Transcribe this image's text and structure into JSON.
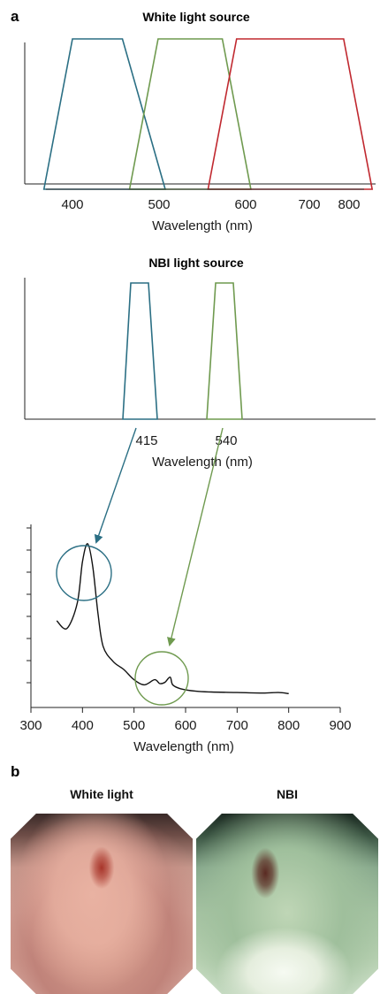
{
  "panel_a": {
    "letter": "a",
    "white_title": "White light source",
    "white_ticks": [
      "400",
      "500",
      "600",
      "700",
      "800"
    ],
    "white_xlabel": "Wavelength (nm)",
    "nbi_title": "NBI light source",
    "nbi_ticks": [
      "415",
      "540"
    ],
    "nbi_xlabel": "Wavelength (nm)",
    "spec_ticks": [
      "300",
      "400",
      "500",
      "600",
      "700",
      "800",
      "900"
    ],
    "spec_xlabel": "Wavelength (nm)"
  },
  "panel_b": {
    "letter": "b",
    "left_title": "White light",
    "right_title": "NBI"
  },
  "colors": {
    "blue": "#2b6f84",
    "green": "#6f9a4f",
    "red": "#c0282f",
    "black": "#111111"
  },
  "chart_data": [
    {
      "type": "area",
      "title": "White light source",
      "xlabel": "Wavelength (nm)",
      "x_ticks": [
        400,
        500,
        600,
        700,
        800
      ],
      "series": [
        {
          "color": "blue",
          "trapezoid_nm": [
            360,
            400,
            470,
            530
          ]
        },
        {
          "color": "green",
          "trapezoid_nm": [
            480,
            520,
            610,
            650
          ]
        },
        {
          "color": "red",
          "trapezoid_nm": [
            590,
            630,
            780,
            820
          ]
        }
      ]
    },
    {
      "type": "area",
      "title": "NBI light source",
      "xlabel": "Wavelength (nm)",
      "x_ticks": [
        415,
        540
      ],
      "series": [
        {
          "color": "blue",
          "center_nm": 415
        },
        {
          "color": "green",
          "center_nm": 540
        }
      ]
    },
    {
      "type": "line",
      "xlabel": "Wavelength (nm)",
      "xlim": [
        300,
        900
      ],
      "x_ticks": [
        300,
        400,
        500,
        600,
        700,
        800,
        900
      ],
      "series": [
        {
          "x": [
            350,
            370,
            390,
            400,
            410,
            420,
            430,
            440,
            460,
            480,
            500,
            520,
            540,
            550,
            560,
            570,
            575,
            590,
            620,
            650,
            700,
            750,
            780,
            800
          ],
          "y": [
            2.9,
            2.6,
            3.6,
            5.2,
            5.9,
            5.0,
            3.2,
            1.9,
            1.3,
            1.0,
            0.6,
            0.4,
            0.6,
            0.45,
            0.5,
            0.7,
            0.4,
            0.25,
            0.15,
            0.12,
            0.1,
            0.08,
            0.1,
            0.06
          ]
        }
      ]
    }
  ]
}
